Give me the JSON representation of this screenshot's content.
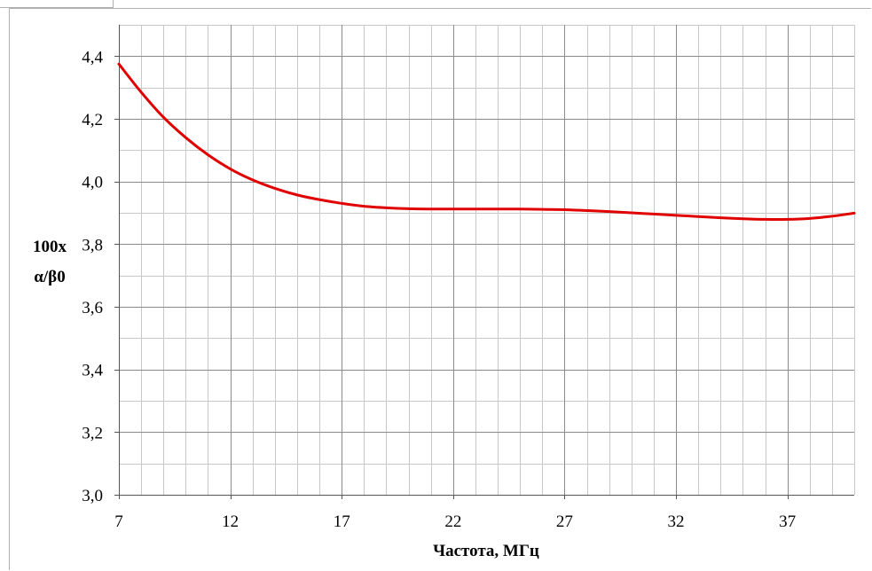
{
  "chart_data": {
    "type": "line",
    "xlabel": "Частота, МГц",
    "ylabel_lines": [
      "100x",
      "α/β0"
    ],
    "xlim": [
      7,
      40
    ],
    "ylim": [
      3.0,
      4.5
    ],
    "x_ticks": [
      7,
      12,
      17,
      22,
      27,
      32,
      37
    ],
    "x_tick_labels": [
      "7",
      "12",
      "17",
      "22",
      "27",
      "32",
      "37"
    ],
    "y_ticks": [
      3.0,
      3.2,
      3.4,
      3.6,
      3.8,
      4.0,
      4.2,
      4.4
    ],
    "y_tick_labels": [
      "3,0",
      "3,2",
      "3,4",
      "3,6",
      "3,8",
      "4,0",
      "4,2",
      "4,4"
    ],
    "x_minor_step": 1,
    "y_minor_step": 0.1,
    "grid": true,
    "series": [
      {
        "color": "#e00000",
        "x": [
          7,
          8,
          9,
          10,
          11,
          12,
          13,
          14,
          15,
          16,
          17,
          18,
          19,
          20,
          21,
          22,
          23,
          24,
          25,
          26,
          27,
          28,
          29,
          30,
          31,
          32,
          33,
          34,
          35,
          36,
          37,
          38,
          39,
          40
        ],
        "y": [
          4.375,
          4.285,
          4.205,
          4.14,
          4.085,
          4.04,
          4.005,
          3.978,
          3.957,
          3.942,
          3.93,
          3.921,
          3.916,
          3.913,
          3.912,
          3.912,
          3.912,
          3.912,
          3.912,
          3.911,
          3.91,
          3.907,
          3.904,
          3.9,
          3.896,
          3.892,
          3.888,
          3.884,
          3.881,
          3.879,
          3.879,
          3.882,
          3.889,
          3.899
        ]
      }
    ]
  }
}
